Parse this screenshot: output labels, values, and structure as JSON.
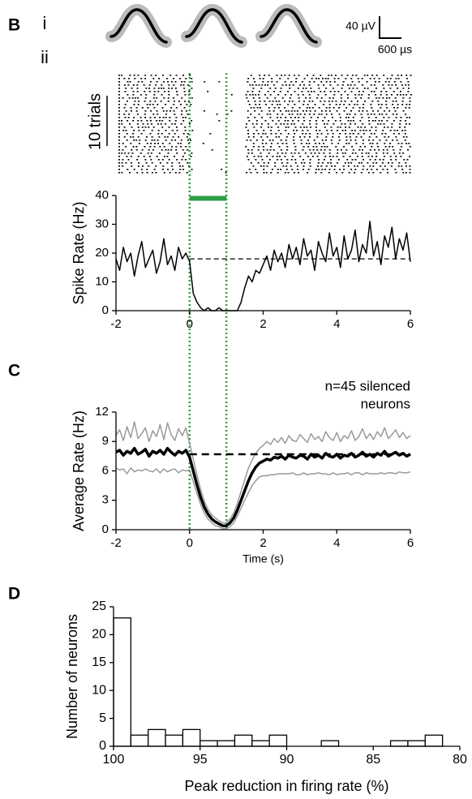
{
  "chart_data": [
    {
      "type": "line",
      "panel_label": "B",
      "row_labels": [
        "i",
        "ii"
      ],
      "scale_bar_labels": [
        "40 µV",
        "600 µs"
      ],
      "raster_label": "10 trials",
      "ylabel": "Spike Rate (Hz)",
      "xlim": [
        -2,
        6
      ],
      "ylim": [
        0,
        40
      ],
      "xticks": [
        -2,
        0,
        2,
        4,
        6
      ],
      "yticks": [
        0,
        10,
        20,
        30,
        40
      ],
      "baseline": 18,
      "stim_window": [
        0,
        1
      ],
      "stim_bar_y": 39,
      "stim_color": "#2e9e44",
      "x": [
        -2,
        -1.9,
        -1.8,
        -1.7,
        -1.6,
        -1.5,
        -1.4,
        -1.3,
        -1.2,
        -1.1,
        -1,
        -0.9,
        -0.8,
        -0.7,
        -0.6,
        -0.5,
        -0.4,
        -0.3,
        -0.2,
        -0.1,
        0,
        0.1,
        0.2,
        0.3,
        0.4,
        0.5,
        0.6,
        0.7,
        0.8,
        0.9,
        1,
        1.1,
        1.2,
        1.3,
        1.4,
        1.5,
        1.6,
        1.7,
        1.8,
        1.9,
        2,
        2.1,
        2.2,
        2.3,
        2.4,
        2.5,
        2.6,
        2.7,
        2.8,
        2.9,
        3,
        3.1,
        3.2,
        3.3,
        3.4,
        3.5,
        3.6,
        3.7,
        3.8,
        3.9,
        4,
        4.1,
        4.2,
        4.3,
        4.4,
        4.5,
        4.6,
        4.7,
        4.8,
        4.9,
        5,
        5.1,
        5.2,
        5.3,
        5.4,
        5.5,
        5.6,
        5.7,
        5.8,
        5.9,
        6
      ],
      "series": [
        {
          "color": "#000000",
          "values": [
            18,
            14,
            22,
            17,
            20,
            12,
            19,
            24,
            15,
            18,
            21,
            13,
            17,
            25,
            16,
            19,
            14,
            22,
            18,
            20,
            17,
            6,
            3,
            1,
            0,
            1,
            0,
            0,
            1,
            0,
            0,
            0,
            0,
            0,
            3,
            8,
            12,
            10,
            14,
            13,
            16,
            19,
            14,
            21,
            17,
            20,
            15,
            23,
            18,
            22,
            16,
            25,
            19,
            21,
            14,
            24,
            20,
            17,
            27,
            19,
            22,
            15,
            26,
            18,
            21,
            28,
            17,
            23,
            20,
            31,
            19,
            24,
            16,
            26,
            22,
            29,
            18,
            25,
            21,
            27,
            17
          ]
        }
      ]
    },
    {
      "type": "line",
      "panel_label": "C",
      "annotation_lines": [
        "n=45 silenced",
        "neurons"
      ],
      "ylabel": "Average Rate (Hz)",
      "xlabel": "Time (s)",
      "xlim": [
        -2,
        6
      ],
      "ylim": [
        0,
        12
      ],
      "xticks": [
        -2,
        0,
        2,
        4,
        6
      ],
      "yticks": [
        0,
        3,
        6,
        9,
        12
      ],
      "baseline": 7.7,
      "x": [
        -2,
        -1.9,
        -1.8,
        -1.7,
        -1.6,
        -1.5,
        -1.4,
        -1.3,
        -1.2,
        -1.1,
        -1,
        -0.9,
        -0.8,
        -0.7,
        -0.6,
        -0.5,
        -0.4,
        -0.3,
        -0.2,
        -0.1,
        0,
        0.1,
        0.2,
        0.3,
        0.4,
        0.5,
        0.6,
        0.7,
        0.8,
        0.9,
        1,
        1.1,
        1.2,
        1.3,
        1.4,
        1.5,
        1.6,
        1.7,
        1.8,
        1.9,
        2,
        2.1,
        2.2,
        2.3,
        2.4,
        2.5,
        2.6,
        2.7,
        2.8,
        2.9,
        3,
        3.1,
        3.2,
        3.3,
        3.4,
        3.5,
        3.6,
        3.7,
        3.8,
        3.9,
        4,
        4.1,
        4.2,
        4.3,
        4.4,
        4.5,
        4.6,
        4.7,
        4.8,
        4.9,
        5,
        5.1,
        5.2,
        5.3,
        5.4,
        5.5,
        5.6,
        5.7,
        5.8,
        5.9,
        6
      ],
      "series": [
        {
          "color": "#999999",
          "values": [
            9.6,
            10.2,
            9.1,
            10.5,
            9.4,
            11.0,
            9.3,
            9.8,
            10.4,
            9.0,
            10.1,
            9.5,
            10.7,
            9.2,
            10.9,
            9.7,
            9.1,
            10.3,
            9.6,
            10.4,
            8.8,
            7.2,
            5.6,
            4.1,
            2.9,
            2.1,
            1.5,
            1.2,
            0.9,
            0.7,
            0.7,
            1.1,
            1.7,
            2.7,
            3.9,
            5.1,
            6.3,
            7.1,
            7.8,
            8.3,
            8.6,
            9.0,
            8.7,
            9.3,
            8.9,
            9.4,
            8.8,
            9.6,
            9.1,
            9.0,
            9.7,
            9.3,
            8.9,
            9.8,
            9.2,
            9.5,
            9.0,
            10.0,
            9.4,
            9.1,
            9.9,
            9.0,
            9.6,
            9.3,
            10.1,
            9.1,
            9.5,
            10.3,
            9.3,
            9.8,
            9.2,
            10.0,
            9.5,
            10.4,
            9.3,
            9.7,
            10.2,
            9.4,
            9.9,
            9.3,
            9.6
          ]
        },
        {
          "color": "#999999",
          "values": [
            6.3,
            6.1,
            6.2,
            5.7,
            6.3,
            5.9,
            6.1,
            6.0,
            6.2,
            6.0,
            5.9,
            6.2,
            5.8,
            6.2,
            5.9,
            6.1,
            6.2,
            5.8,
            6.1,
            6.0,
            6.1,
            4.9,
            3.7,
            2.6,
            1.7,
            1.1,
            0.7,
            0.4,
            0.3,
            0.1,
            0.1,
            0.3,
            0.7,
            1.4,
            2.2,
            3.0,
            3.8,
            4.5,
            5.0,
            5.4,
            5.5,
            5.5,
            5.6,
            5.6,
            5.7,
            5.7,
            5.7,
            5.7,
            5.8,
            5.6,
            5.6,
            5.8,
            5.6,
            5.7,
            5.7,
            5.8,
            5.7,
            5.7,
            5.6,
            5.8,
            5.6,
            5.7,
            5.7,
            5.8,
            5.6,
            5.8,
            5.8,
            5.6,
            5.8,
            5.7,
            5.7,
            5.7,
            5.8,
            5.7,
            5.8,
            5.8,
            5.7,
            5.9,
            5.8,
            5.8,
            5.9
          ]
        },
        {
          "color": "#000000",
          "values": [
            7.9,
            8.1,
            7.6,
            8.0,
            7.8,
            8.3,
            7.7,
            7.9,
            8.2,
            7.5,
            8.0,
            7.8,
            8.1,
            7.7,
            8.3,
            7.9,
            7.6,
            8.0,
            7.8,
            8.1,
            7.4,
            6.0,
            4.6,
            3.3,
            2.3,
            1.6,
            1.1,
            0.8,
            0.6,
            0.4,
            0.4,
            0.7,
            1.2,
            2.0,
            3.0,
            4.0,
            5.0,
            5.8,
            6.4,
            6.8,
            7.0,
            7.2,
            7.1,
            7.4,
            7.3,
            7.5,
            7.2,
            7.6,
            7.4,
            7.3,
            7.6,
            7.5,
            7.2,
            7.7,
            7.4,
            7.6,
            7.3,
            7.8,
            7.5,
            7.4,
            7.7,
            7.3,
            7.6,
            7.5,
            7.8,
            7.4,
            7.6,
            7.9,
            7.5,
            7.7,
            7.4,
            7.8,
            7.6,
            8.0,
            7.5,
            7.7,
            7.9,
            7.6,
            7.8,
            7.5,
            7.7
          ]
        }
      ]
    },
    {
      "type": "histogram",
      "panel_label": "D",
      "ylabel": "Number of neurons",
      "xlabel": "Peak reduction in firing rate (%)",
      "xlim": [
        100,
        80
      ],
      "ylim": [
        0,
        25
      ],
      "xticks": [
        100,
        95,
        90,
        85,
        80
      ],
      "yticks": [
        0,
        5,
        10,
        15,
        20,
        25
      ],
      "bins": [
        100,
        99,
        98,
        97,
        96,
        95,
        94,
        93,
        92,
        91,
        90,
        89,
        88,
        87,
        86,
        85,
        84,
        83,
        82,
        81
      ],
      "counts": [
        23,
        2,
        3,
        2,
        3,
        1,
        1,
        2,
        1,
        2,
        0,
        0,
        1,
        0,
        0,
        0,
        1,
        1,
        2
      ]
    }
  ]
}
